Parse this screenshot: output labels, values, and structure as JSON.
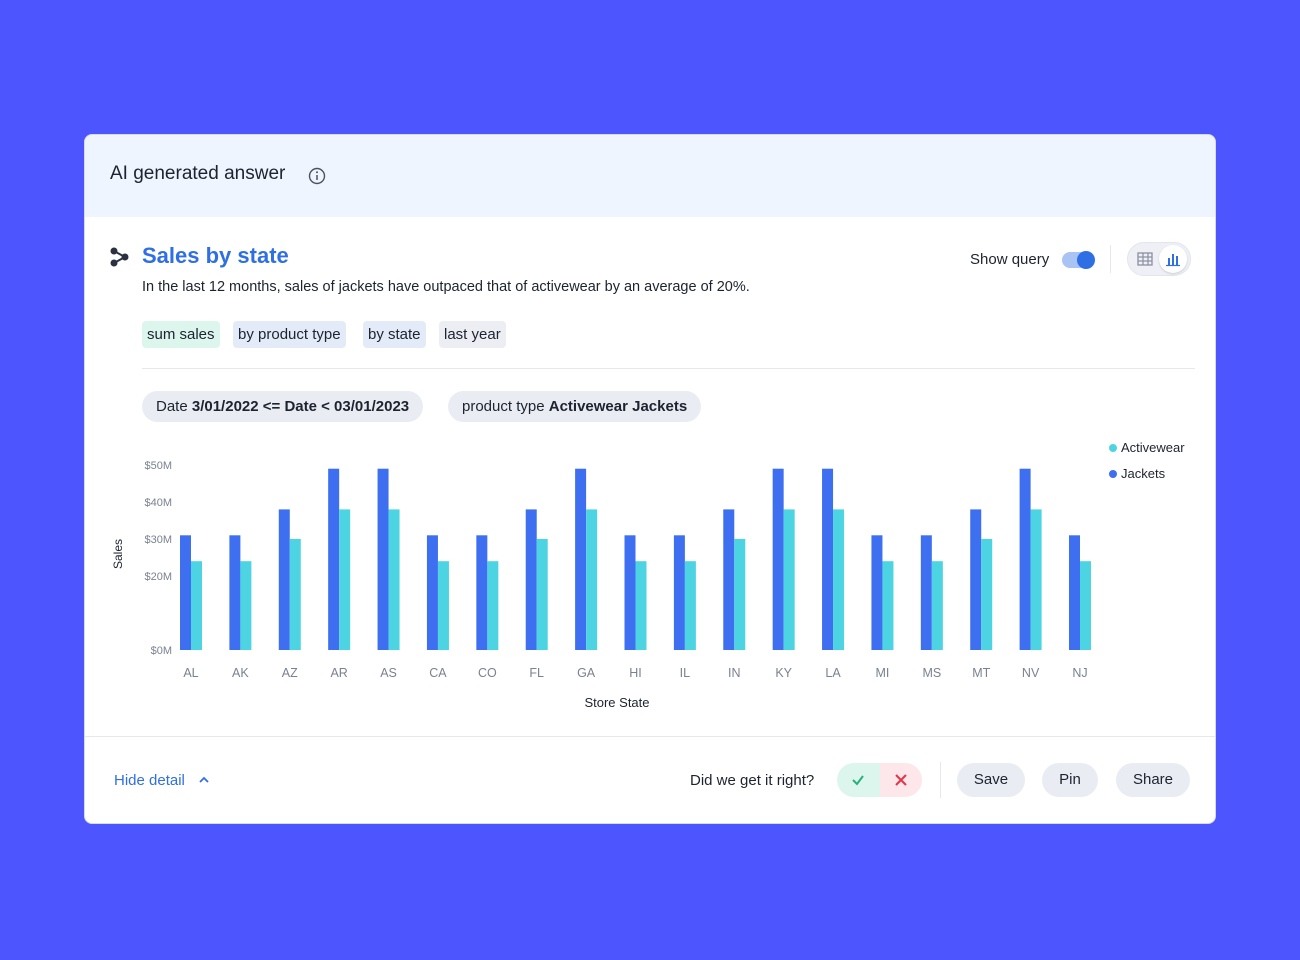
{
  "card": {
    "title": "AI generated answer",
    "info_icon": "info-circle-icon"
  },
  "viz": {
    "icon": "graph-nodes-icon",
    "title": "Sales by state",
    "summary": "In the last 12 months, sales of jackets have outpaced that of activewear by an average of 20%.",
    "show_query_label": "Show query",
    "show_query_on": true,
    "view_table_icon": "table-icon",
    "view_chart_icon": "bar-chart-icon",
    "active_view": "chart"
  },
  "tokens": [
    {
      "label": "sum sales",
      "kind": "measure"
    },
    {
      "label": "by product type",
      "kind": "attribute"
    },
    {
      "label": "by state",
      "kind": "attribute"
    },
    {
      "label": "last year",
      "kind": "keyword"
    }
  ],
  "filters": [
    {
      "label": "Date",
      "value": "3/01/2022 <= Date < 03/01/2023"
    },
    {
      "label": "product type",
      "value": "Activewear Jackets"
    }
  ],
  "colors": {
    "accent": "#2f6fe4",
    "jackets": "#3d6ff0",
    "activewear": "#4dd4e2",
    "background": "#4c55fe"
  },
  "chart_data": {
    "type": "bar",
    "xlabel": "Store State",
    "ylabel": "Sales",
    "ylim": [
      0,
      50
    ],
    "yticks": [
      "$0M",
      "$20M",
      "$30M",
      "$40M",
      "$50M"
    ],
    "legend_position": "top-right",
    "categories": [
      "AL",
      "AK",
      "AZ",
      "AR",
      "AS",
      "CA",
      "CO",
      "FL",
      "GA",
      "HI",
      "IL",
      "IN",
      "KY",
      "LA",
      "MI",
      "MS",
      "MT",
      "NV",
      "NJ"
    ],
    "series": [
      {
        "name": "Activewear",
        "values": [
          24,
          24,
          30,
          38,
          38,
          24,
          24,
          30,
          38,
          24,
          24,
          30,
          38,
          38,
          24,
          24,
          30,
          38,
          24
        ]
      },
      {
        "name": "Jackets",
        "values": [
          31,
          31,
          38,
          49,
          49,
          31,
          31,
          38,
          49,
          31,
          31,
          38,
          49,
          49,
          31,
          31,
          38,
          49,
          31
        ]
      }
    ]
  },
  "footer": {
    "hide_detail": "Hide detail",
    "chevron_icon": "chevron-up-icon",
    "feedback_question": "Did we get it right?",
    "yes_icon": "check-icon",
    "no_icon": "close-icon",
    "save": "Save",
    "pin": "Pin",
    "share": "Share"
  }
}
